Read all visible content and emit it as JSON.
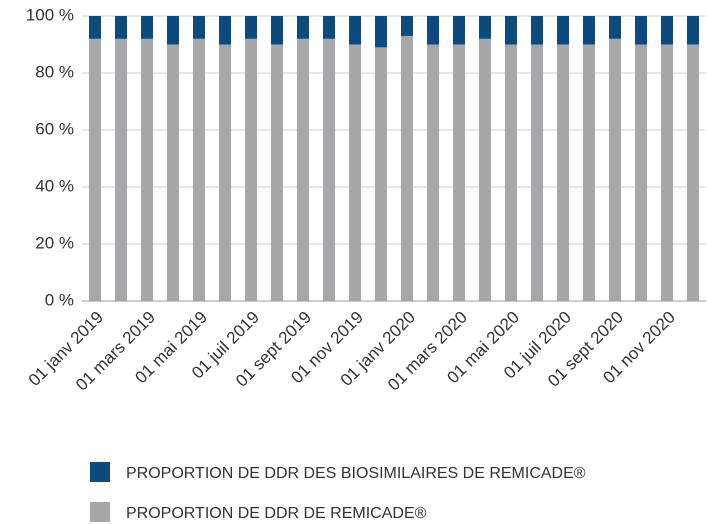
{
  "chart_data": {
    "type": "stacked_bar",
    "categories": [
      "01 janv 2019",
      null,
      "01 mars 2019",
      null,
      "01 mai 2019",
      null,
      "01 juil 2019",
      null,
      "01 sept 2019",
      null,
      "01 nov 2019",
      null,
      "01 janv 2020",
      null,
      "01 mars 2020",
      null,
      "01 mai 2020",
      null,
      "01 juil 2020",
      null,
      "01 sept 2020",
      null,
      "01 nov 2020",
      null
    ],
    "series": [
      {
        "name": "PROPORTION DE DDR DES BIOSIMILAIRES DE REMICADE®",
        "color": "#0d4a7d",
        "values": [
          8,
          8,
          8,
          10,
          8,
          10,
          8,
          10,
          8,
          8,
          10,
          11,
          7,
          10,
          10,
          8,
          10,
          10,
          10,
          10,
          8,
          10,
          10,
          10
        ]
      },
      {
        "name": "PROPORTION DE DDR DE REMICADE®",
        "color": "#a7a7aa",
        "values": [
          92,
          92,
          92,
          90,
          92,
          90,
          92,
          90,
          92,
          92,
          90,
          89,
          93,
          90,
          90,
          92,
          90,
          90,
          90,
          90,
          92,
          90,
          90,
          90
        ]
      }
    ],
    "ylim": [
      0,
      100
    ],
    "yticks": [
      {
        "value": 0,
        "label": "0 %"
      },
      {
        "value": 20,
        "label": "20 %"
      },
      {
        "value": 40,
        "label": "40 %"
      },
      {
        "value": 60,
        "label": "60 %"
      },
      {
        "value": 80,
        "label": "80 %"
      },
      {
        "value": 100,
        "label": "100 %"
      }
    ],
    "grid": true
  }
}
